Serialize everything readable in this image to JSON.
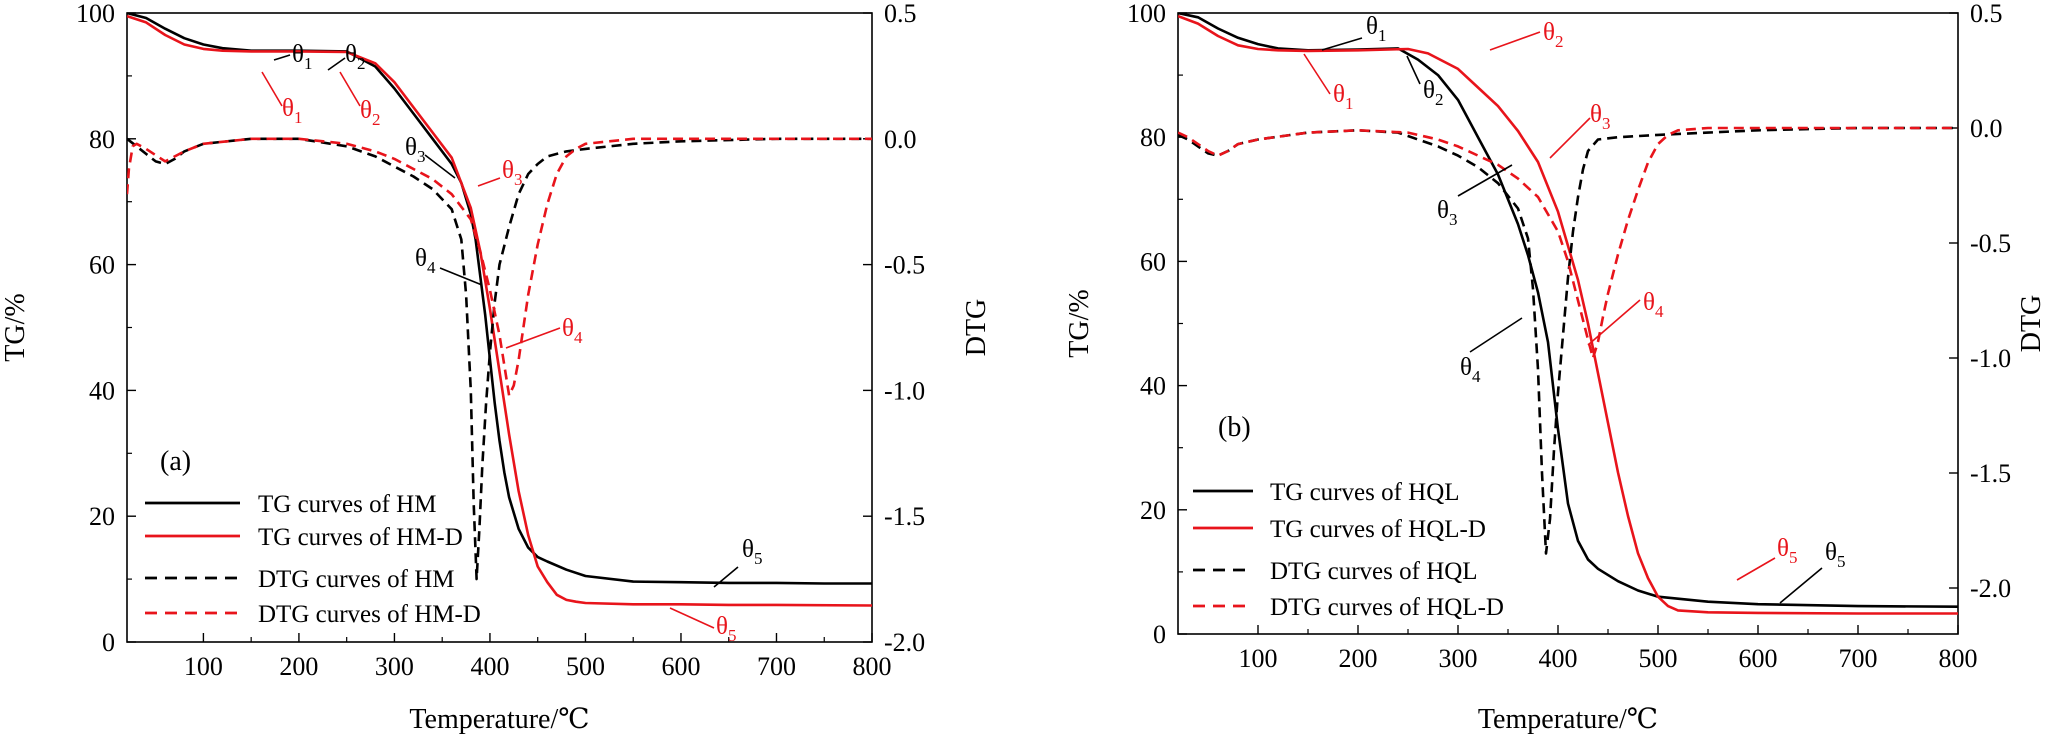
{
  "colors": {
    "black": "#000000",
    "red": "#e8141b"
  },
  "chart_data": [
    {
      "type": "line",
      "panel": "(a)",
      "xlabel": "Temperature/℃",
      "ylabel": "TG/%",
      "y2label": "DTG",
      "xlim": [
        20,
        800
      ],
      "ylim": [
        0,
        100
      ],
      "y2lim": [
        -2.0,
        0.5
      ],
      "xticks": [
        100,
        200,
        300,
        400,
        500,
        600,
        700,
        800
      ],
      "yticks": [
        0,
        20,
        40,
        60,
        80,
        100
      ],
      "y2ticks": [
        0.5,
        0.0,
        -0.5,
        -1.0,
        -1.5,
        -2.0
      ],
      "legend_position": "lower-left",
      "series": [
        {
          "name": "TG curves of HM",
          "axis": "left",
          "color": "black",
          "dash": "solid",
          "x": [
            20,
            40,
            60,
            80,
            100,
            120,
            150,
            200,
            250,
            280,
            300,
            320,
            340,
            360,
            370,
            380,
            385,
            390,
            395,
            400,
            405,
            410,
            415,
            420,
            430,
            440,
            450,
            460,
            480,
            500,
            550,
            600,
            650,
            700,
            750,
            800
          ],
          "y": [
            100,
            99.2,
            97.5,
            96,
            95,
            94.4,
            94.0,
            94.0,
            93.9,
            91.5,
            88,
            84,
            80,
            76,
            73,
            68,
            64,
            58,
            52,
            45,
            38,
            32,
            27,
            23,
            18,
            15,
            13.5,
            12.8,
            11.5,
            10.5,
            9.6,
            9.5,
            9.4,
            9.4,
            9.3,
            9.3
          ]
        },
        {
          "name": "TG curves of HM-D",
          "axis": "left",
          "color": "red",
          "dash": "solid",
          "x": [
            20,
            40,
            60,
            80,
            100,
            120,
            150,
            200,
            250,
            280,
            300,
            320,
            340,
            360,
            380,
            390,
            400,
            410,
            420,
            430,
            440,
            450,
            460,
            470,
            480,
            490,
            500,
            550,
            600,
            650,
            700,
            800
          ],
          "y": [
            99.5,
            98.5,
            96.5,
            95,
            94.3,
            94.0,
            93.9,
            93.9,
            93.8,
            92,
            89,
            85,
            81,
            77,
            69,
            62,
            53,
            43,
            33,
            24,
            17,
            12,
            9.5,
            7.5,
            6.7,
            6.4,
            6.2,
            6.0,
            6.0,
            5.9,
            5.9,
            5.8
          ]
        },
        {
          "name": "DTG curves of HM",
          "axis": "right",
          "color": "black",
          "dash": "dashed",
          "x": [
            20,
            30,
            40,
            50,
            60,
            70,
            80,
            100,
            150,
            200,
            250,
            280,
            300,
            320,
            340,
            360,
            370,
            375,
            380,
            383,
            386,
            389,
            392,
            396,
            400,
            405,
            410,
            420,
            430,
            440,
            450,
            460,
            480,
            500,
            550,
            600,
            700,
            800
          ],
          "y": [
            0.0,
            -0.03,
            -0.06,
            -0.09,
            -0.1,
            -0.08,
            -0.05,
            -0.02,
            0.0,
            0.0,
            -0.03,
            -0.07,
            -0.11,
            -0.15,
            -0.2,
            -0.28,
            -0.4,
            -0.62,
            -1.0,
            -1.45,
            -1.75,
            -1.55,
            -1.3,
            -1.05,
            -0.85,
            -0.65,
            -0.5,
            -0.35,
            -0.22,
            -0.14,
            -0.1,
            -0.07,
            -0.05,
            -0.04,
            -0.02,
            -0.01,
            0.0,
            0.0
          ]
        },
        {
          "name": "DTG curves of HM-D",
          "axis": "right",
          "color": "red",
          "dash": "dashed",
          "x": [
            20,
            22,
            26,
            30,
            40,
            60,
            80,
            100,
            150,
            200,
            250,
            280,
            300,
            320,
            340,
            360,
            380,
            390,
            400,
            410,
            415,
            420,
            425,
            430,
            435,
            440,
            450,
            460,
            470,
            480,
            490,
            500,
            550,
            600,
            700,
            800
          ],
          "y": [
            -0.22,
            -0.12,
            -0.03,
            -0.02,
            -0.04,
            -0.09,
            -0.05,
            -0.02,
            0.0,
            0.0,
            -0.02,
            -0.05,
            -0.08,
            -0.12,
            -0.16,
            -0.22,
            -0.32,
            -0.45,
            -0.6,
            -0.78,
            -0.9,
            -1.02,
            -0.98,
            -0.88,
            -0.75,
            -0.62,
            -0.42,
            -0.26,
            -0.14,
            -0.07,
            -0.04,
            -0.02,
            0.0,
            0.0,
            0.0,
            0.0
          ]
        }
      ],
      "annotations": [
        {
          "base": "θ",
          "sub": "1",
          "color": "black"
        },
        {
          "base": "θ",
          "sub": "2",
          "color": "black"
        },
        {
          "base": "θ",
          "sub": "1",
          "color": "red"
        },
        {
          "base": "θ",
          "sub": "2",
          "color": "red"
        },
        {
          "base": "θ",
          "sub": "3",
          "color": "black"
        },
        {
          "base": "θ",
          "sub": "3",
          "color": "red"
        },
        {
          "base": "θ",
          "sub": "4",
          "color": "black"
        },
        {
          "base": "θ",
          "sub": "4",
          "color": "red"
        },
        {
          "base": "θ",
          "sub": "5",
          "color": "black"
        },
        {
          "base": "θ",
          "sub": "5",
          "color": "red"
        }
      ]
    },
    {
      "type": "line",
      "panel": "(b)",
      "xlabel": "Temperature/℃",
      "ylabel": "TG/%",
      "y2label": "DTG",
      "xlim": [
        20,
        800
      ],
      "ylim": [
        0,
        100
      ],
      "y2lim": [
        -2.2,
        0.5
      ],
      "xticks": [
        100,
        200,
        300,
        400,
        500,
        600,
        700,
        800
      ],
      "yticks": [
        0,
        20,
        40,
        60,
        80,
        100
      ],
      "y2ticks": [
        0.5,
        0.0,
        -0.5,
        -1.0,
        -1.5,
        -2.0
      ],
      "legend_position": "lower-left",
      "series": [
        {
          "name": "TG curves of HQL",
          "axis": "left",
          "color": "black",
          "dash": "solid",
          "x": [
            20,
            40,
            60,
            80,
            100,
            120,
            150,
            200,
            240,
            260,
            280,
            300,
            320,
            340,
            360,
            370,
            380,
            390,
            395,
            400,
            405,
            410,
            420,
            430,
            440,
            460,
            480,
            500,
            550,
            600,
            700,
            800
          ],
          "y": [
            100,
            99.3,
            97.5,
            96,
            95,
            94.3,
            94.0,
            94.1,
            94.3,
            92.5,
            90,
            86,
            80,
            74,
            66,
            61,
            55,
            47,
            40,
            33,
            27,
            21,
            15,
            12,
            10.5,
            8.5,
            7,
            6,
            5.2,
            4.8,
            4.5,
            4.4
          ]
        },
        {
          "name": "TG curves of HQL-D",
          "axis": "left",
          "color": "red",
          "dash": "solid",
          "x": [
            20,
            40,
            60,
            80,
            100,
            120,
            150,
            200,
            250,
            270,
            300,
            320,
            340,
            360,
            380,
            400,
            420,
            430,
            440,
            450,
            460,
            470,
            480,
            490,
            500,
            510,
            520,
            550,
            600,
            700,
            800
          ],
          "y": [
            99.5,
            98.3,
            96.3,
            94.8,
            94.2,
            94.0,
            93.9,
            94.0,
            94.2,
            93.5,
            91,
            88,
            85,
            81,
            76,
            68,
            57,
            50,
            42,
            34,
            26,
            19,
            13,
            9,
            6,
            4.5,
            3.8,
            3.5,
            3.4,
            3.3,
            3.3
          ]
        },
        {
          "name": "DTG curves of HQL",
          "axis": "right",
          "color": "black",
          "dash": "dashed",
          "x": [
            20,
            30,
            40,
            50,
            60,
            70,
            80,
            100,
            150,
            200,
            240,
            260,
            280,
            300,
            320,
            340,
            360,
            370,
            375,
            380,
            384,
            388,
            392,
            396,
            400,
            405,
            410,
            415,
            420,
            425,
            430,
            440,
            460,
            500,
            550,
            600,
            700,
            800
          ],
          "y": [
            -0.03,
            -0.05,
            -0.08,
            -0.11,
            -0.12,
            -0.1,
            -0.07,
            -0.05,
            -0.02,
            -0.01,
            -0.02,
            -0.05,
            -0.08,
            -0.12,
            -0.17,
            -0.24,
            -0.35,
            -0.48,
            -0.7,
            -1.05,
            -1.5,
            -1.85,
            -1.7,
            -1.4,
            -1.15,
            -0.9,
            -0.65,
            -0.45,
            -0.3,
            -0.18,
            -0.1,
            -0.05,
            -0.04,
            -0.03,
            -0.02,
            -0.01,
            0.0,
            0.0
          ]
        },
        {
          "name": "DTG curves of HQL-D",
          "axis": "right",
          "color": "red",
          "dash": "dashed",
          "x": [
            20,
            30,
            40,
            50,
            60,
            70,
            80,
            100,
            150,
            200,
            250,
            280,
            300,
            320,
            340,
            360,
            380,
            400,
            410,
            420,
            430,
            435,
            440,
            445,
            450,
            460,
            470,
            480,
            490,
            500,
            510,
            520,
            550,
            600,
            700,
            800
          ],
          "y": [
            -0.02,
            -0.04,
            -0.07,
            -0.1,
            -0.12,
            -0.1,
            -0.07,
            -0.05,
            -0.02,
            -0.01,
            -0.02,
            -0.05,
            -0.08,
            -0.12,
            -0.16,
            -0.22,
            -0.3,
            -0.45,
            -0.58,
            -0.75,
            -0.92,
            -1.0,
            -0.93,
            -0.82,
            -0.72,
            -0.55,
            -0.4,
            -0.27,
            -0.15,
            -0.07,
            -0.03,
            -0.01,
            0.0,
            0.0,
            0.0,
            0.0
          ]
        }
      ],
      "annotations": [
        {
          "base": "θ",
          "sub": "1",
          "color": "black"
        },
        {
          "base": "θ",
          "sub": "2",
          "color": "red"
        },
        {
          "base": "θ",
          "sub": "1",
          "color": "red"
        },
        {
          "base": "θ",
          "sub": "2",
          "color": "black"
        },
        {
          "base": "θ",
          "sub": "3",
          "color": "red"
        },
        {
          "base": "θ",
          "sub": "3",
          "color": "black"
        },
        {
          "base": "θ",
          "sub": "4",
          "color": "red"
        },
        {
          "base": "θ",
          "sub": "4",
          "color": "black"
        },
        {
          "base": "θ",
          "sub": "5",
          "color": "red"
        },
        {
          "base": "θ",
          "sub": "5",
          "color": "black"
        }
      ]
    }
  ]
}
